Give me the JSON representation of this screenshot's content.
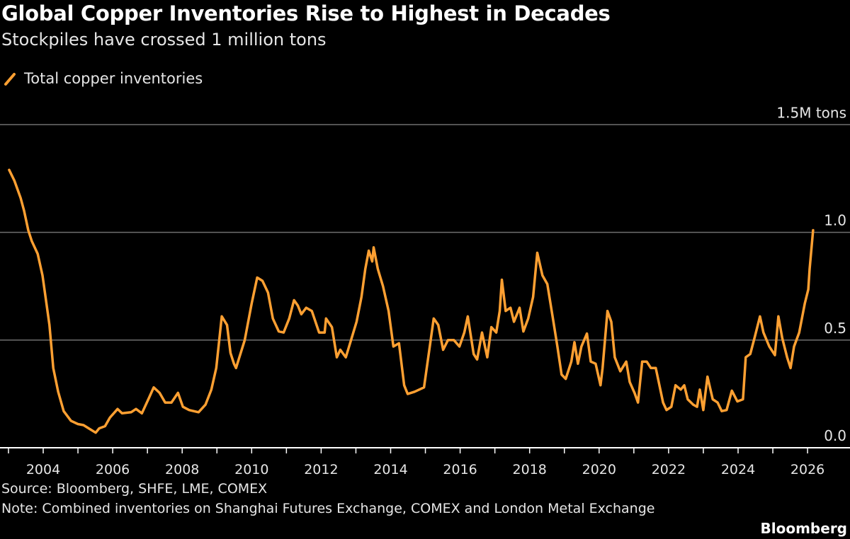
{
  "title": "Global Copper Inventories Rise to Highest in Decades",
  "subtitle": "Stockpiles have crossed 1 million tons",
  "source": "Source: Bloomberg, SHFE, LME, COMEX",
  "note": "Note: Combined inventories on Shanghai Futures Exchange, COMEX and London Metal Exchange",
  "logo": "Bloomberg",
  "colors": {
    "series": "#ffa032",
    "grid": "#6e6e6e",
    "background": "#000000",
    "text": "#ffffff"
  },
  "chart_data": {
    "type": "line",
    "title": "Global Copper Inventories Rise to Highest in Decades",
    "subtitle": "Stockpiles have crossed 1 million tons",
    "xlabel": "",
    "ylabel": "",
    "unit_label": "1.5M tons",
    "xlim": [
      2003,
      2026.3
    ],
    "ylim": [
      0,
      1.5
    ],
    "grid": true,
    "legend_position": "top-left",
    "x_ticks": [
      "2004",
      "2006",
      "2008",
      "2010",
      "2012",
      "2014",
      "2016",
      "2018",
      "2020",
      "2022",
      "2024",
      "2026"
    ],
    "y_ticks": [
      {
        "value": 0,
        "label": "0.0"
      },
      {
        "value": 0.5,
        "label": "0.5"
      },
      {
        "value": 1.0,
        "label": "1.0"
      },
      {
        "value": 1.5,
        "label": "1.5M tons"
      }
    ],
    "series": [
      {
        "name": "Total copper inventories",
        "x": [
          2003.02,
          2003.17,
          2003.35,
          2003.45,
          2003.57,
          2003.67,
          2003.84,
          2003.98,
          2004.04,
          2004.18,
          2004.29,
          2004.43,
          2004.59,
          2004.8,
          2005.0,
          2005.16,
          2005.31,
          2005.51,
          2005.61,
          2005.78,
          2005.92,
          2006.14,
          2006.27,
          2006.53,
          2006.67,
          2006.84,
          2007.04,
          2007.18,
          2007.35,
          2007.51,
          2007.69,
          2007.88,
          2008.02,
          2008.2,
          2008.47,
          2008.67,
          2008.84,
          2008.98,
          2009.14,
          2009.29,
          2009.39,
          2009.49,
          2009.55,
          2009.8,
          2010.0,
          2010.16,
          2010.31,
          2010.47,
          2010.61,
          2010.78,
          2010.92,
          2011.08,
          2011.22,
          2011.33,
          2011.43,
          2011.57,
          2011.73,
          2011.94,
          2012.1,
          2012.14,
          2012.31,
          2012.45,
          2012.55,
          2012.71,
          2012.86,
          2013.02,
          2013.16,
          2013.27,
          2013.37,
          2013.47,
          2013.51,
          2013.63,
          2013.78,
          2013.94,
          2014.08,
          2014.24,
          2014.39,
          2014.49,
          2014.69,
          2014.96,
          2015.14,
          2015.24,
          2015.37,
          2015.51,
          2015.65,
          2015.82,
          2015.98,
          2016.12,
          2016.22,
          2016.39,
          2016.49,
          2016.63,
          2016.78,
          2016.9,
          2017.04,
          2017.14,
          2017.2,
          2017.31,
          2017.45,
          2017.55,
          2017.71,
          2017.82,
          2017.96,
          2018.1,
          2018.22,
          2018.37,
          2018.51,
          2018.67,
          2018.8,
          2018.92,
          2019.04,
          2019.2,
          2019.29,
          2019.39,
          2019.49,
          2019.65,
          2019.76,
          2019.9,
          2020.04,
          2020.1,
          2020.24,
          2020.35,
          2020.45,
          2020.61,
          2020.78,
          2020.88,
          2021.02,
          2021.12,
          2021.24,
          2021.37,
          2021.49,
          2021.63,
          2021.84,
          2021.94,
          2022.08,
          2022.2,
          2022.35,
          2022.45,
          2022.55,
          2022.71,
          2022.82,
          2022.9,
          2023.0,
          2023.12,
          2023.27,
          2023.41,
          2023.53,
          2023.67,
          2023.82,
          2023.98,
          2024.14,
          2024.22,
          2024.35,
          2024.49,
          2024.63,
          2024.73,
          2024.9,
          2025.06,
          2025.16,
          2025.27,
          2025.41,
          2025.51,
          2025.61,
          2025.76,
          2025.92,
          2026.02,
          2026.06,
          2026.16
        ],
        "values": [
          1.29,
          1.24,
          1.16,
          1.1,
          1.01,
          0.96,
          0.9,
          0.8,
          0.73,
          0.57,
          0.37,
          0.26,
          0.17,
          0.125,
          0.11,
          0.105,
          0.09,
          0.07,
          0.09,
          0.1,
          0.14,
          0.18,
          0.16,
          0.165,
          0.18,
          0.16,
          0.23,
          0.28,
          0.255,
          0.21,
          0.21,
          0.255,
          0.19,
          0.175,
          0.165,
          0.2,
          0.27,
          0.37,
          0.61,
          0.57,
          0.44,
          0.39,
          0.37,
          0.5,
          0.67,
          0.79,
          0.775,
          0.72,
          0.6,
          0.54,
          0.535,
          0.6,
          0.685,
          0.66,
          0.62,
          0.65,
          0.635,
          0.535,
          0.535,
          0.6,
          0.56,
          0.42,
          0.455,
          0.42,
          0.5,
          0.585,
          0.7,
          0.83,
          0.915,
          0.865,
          0.93,
          0.83,
          0.75,
          0.635,
          0.47,
          0.485,
          0.29,
          0.25,
          0.26,
          0.28,
          0.485,
          0.6,
          0.57,
          0.455,
          0.5,
          0.5,
          0.47,
          0.535,
          0.61,
          0.435,
          0.41,
          0.535,
          0.42,
          0.56,
          0.535,
          0.635,
          0.78,
          0.635,
          0.65,
          0.585,
          0.65,
          0.54,
          0.6,
          0.7,
          0.905,
          0.8,
          0.76,
          0.6,
          0.47,
          0.34,
          0.32,
          0.4,
          0.49,
          0.39,
          0.47,
          0.53,
          0.4,
          0.39,
          0.29,
          0.37,
          0.635,
          0.585,
          0.42,
          0.355,
          0.4,
          0.305,
          0.255,
          0.21,
          0.4,
          0.4,
          0.37,
          0.37,
          0.21,
          0.175,
          0.19,
          0.29,
          0.27,
          0.29,
          0.225,
          0.2,
          0.19,
          0.27,
          0.175,
          0.33,
          0.225,
          0.21,
          0.17,
          0.175,
          0.265,
          0.215,
          0.225,
          0.42,
          0.435,
          0.52,
          0.61,
          0.535,
          0.47,
          0.43,
          0.61,
          0.51,
          0.42,
          0.37,
          0.47,
          0.535,
          0.67,
          0.735,
          0.83,
          1.01
        ]
      }
    ]
  }
}
